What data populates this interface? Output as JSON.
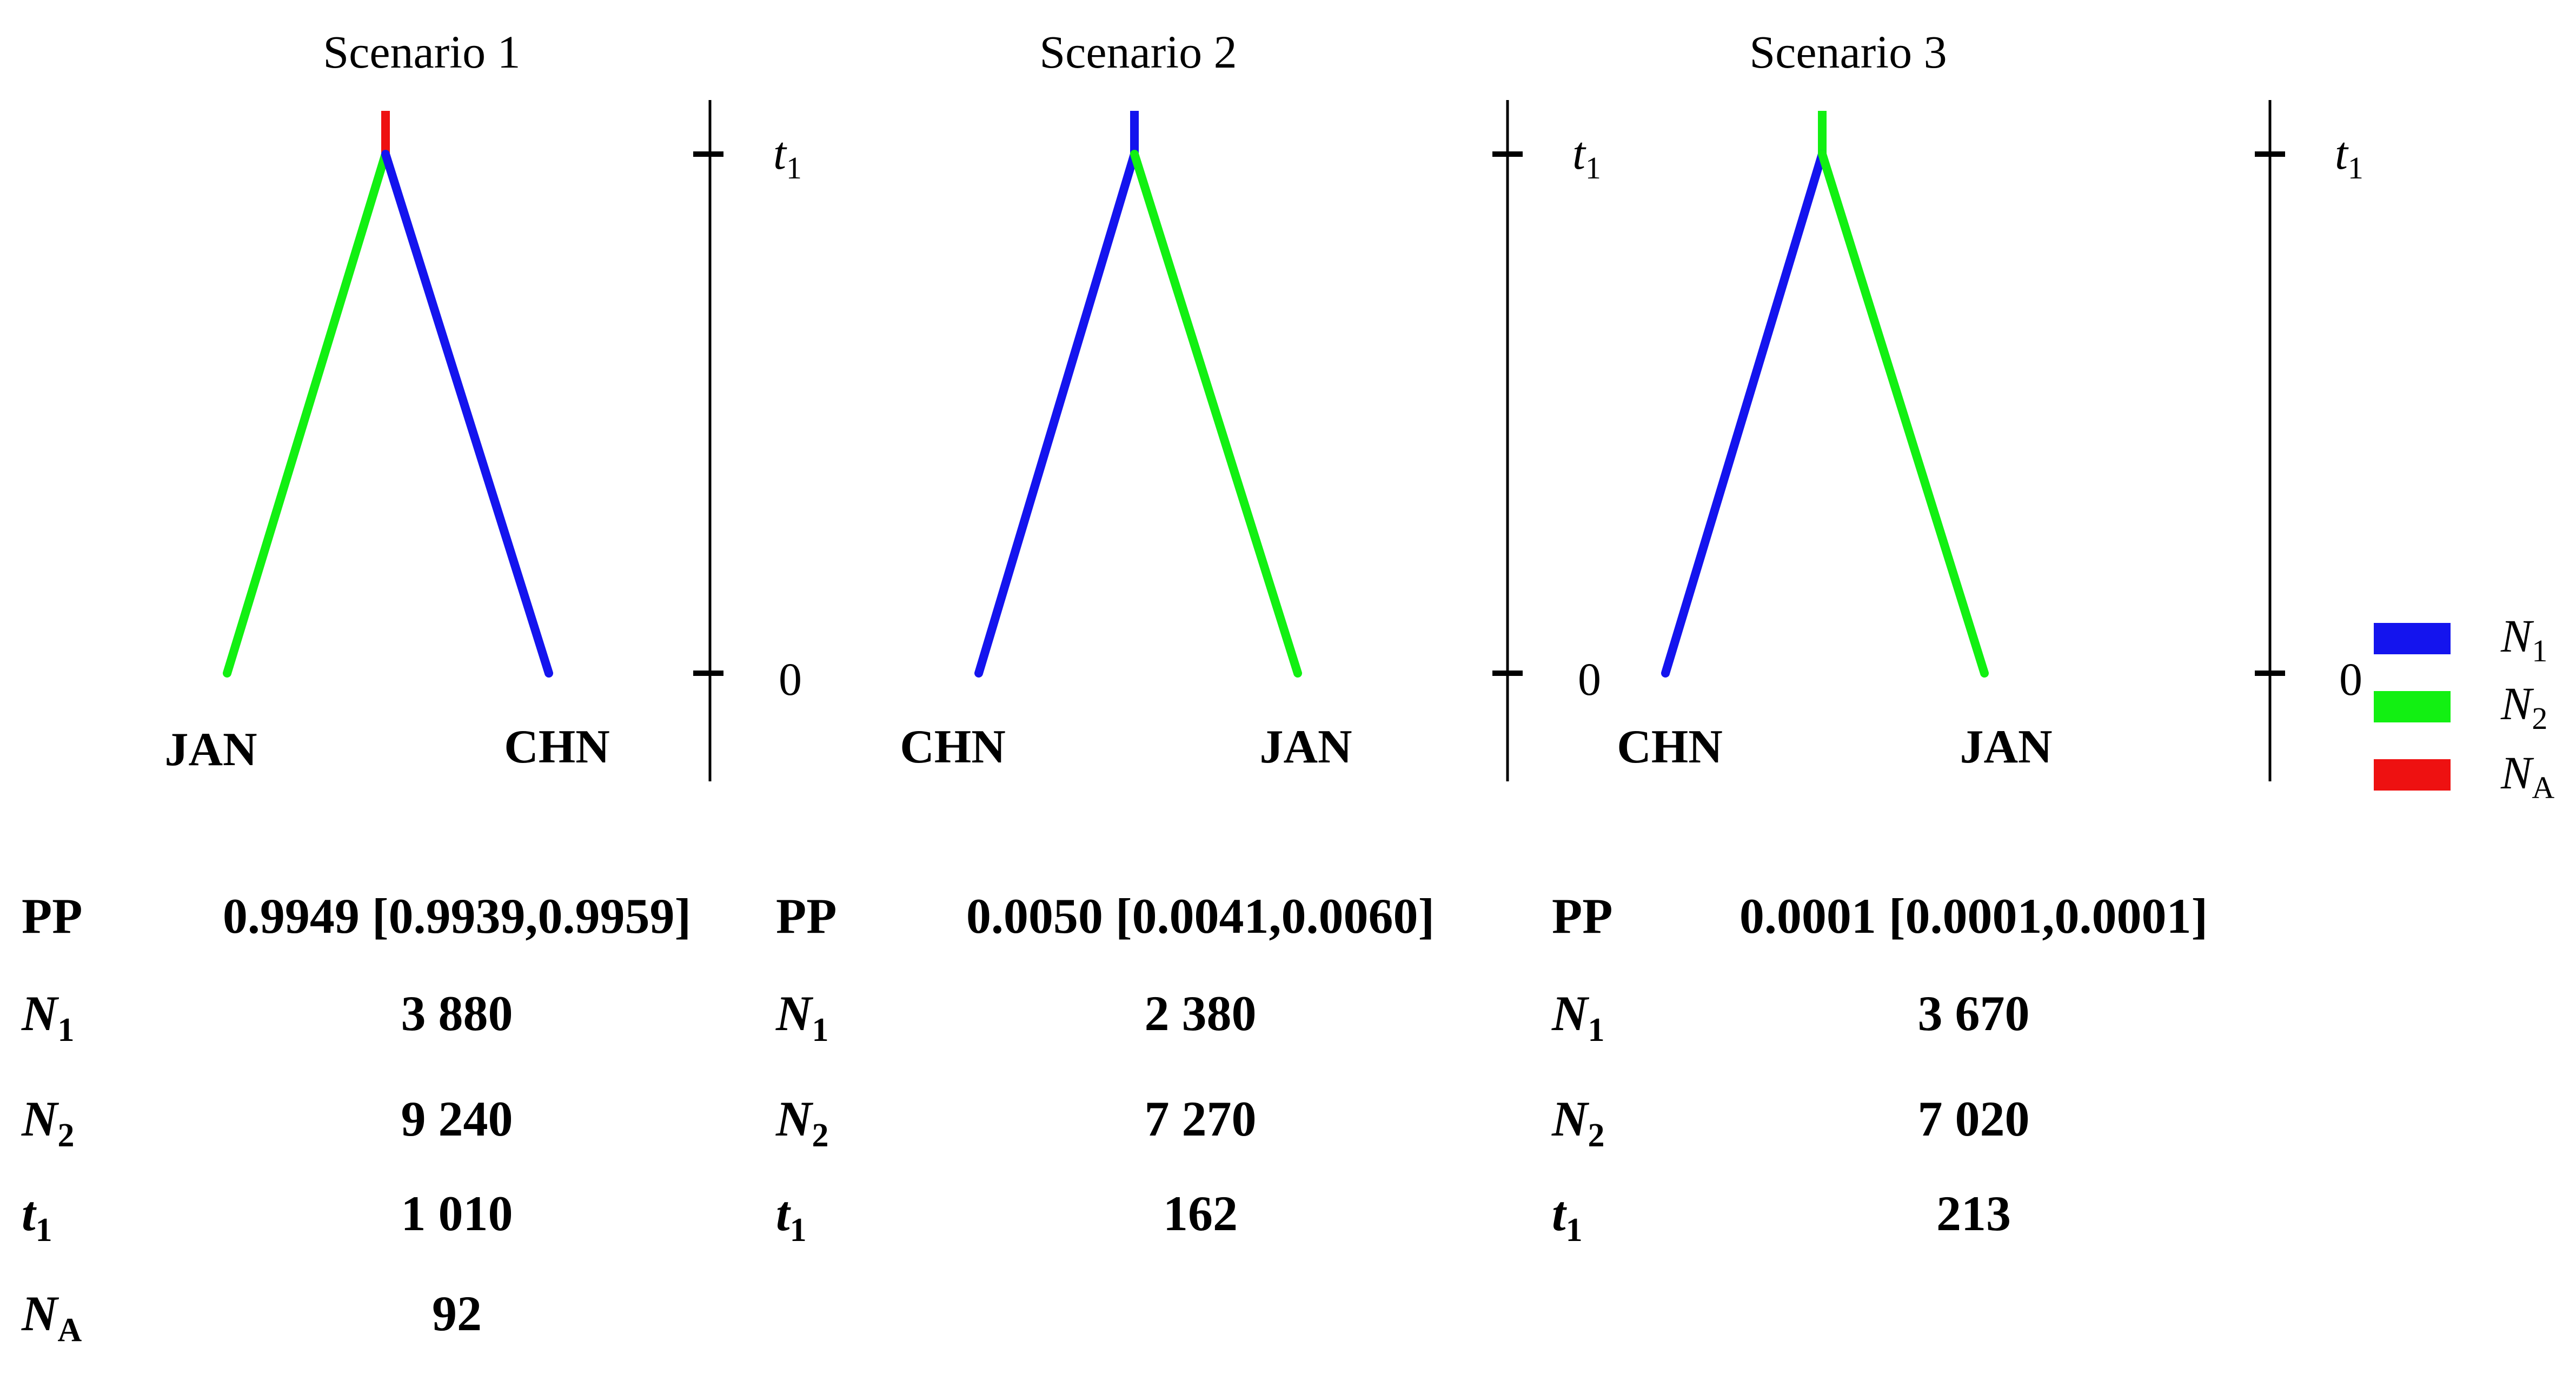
{
  "colors": {
    "N1": "#1414ee",
    "N2": "#12f012",
    "NA": "#ee1111"
  },
  "legend": [
    {
      "key": "N1",
      "label": "N",
      "sub": "1",
      "color": "#1414ee"
    },
    {
      "key": "N2",
      "label": "N",
      "sub": "2",
      "color": "#12f012"
    },
    {
      "key": "NA",
      "label": "N",
      "sub": "A",
      "color": "#ee1111"
    }
  ],
  "scenarios": [
    {
      "title": "Scenario 1",
      "left_pop": "JAN",
      "right_pop": "CHN",
      "left_color": "N2",
      "right_color": "N1",
      "stem_color": "NA",
      "axis": {
        "top_label": "t",
        "top_sub": "1",
        "bottom_label": "0"
      },
      "table": [
        {
          "label": "PP",
          "sub": "",
          "italic": false,
          "value": "0.9949 [0.9939,0.9959]"
        },
        {
          "label": "N",
          "sub": "1",
          "italic": true,
          "value": "3 880"
        },
        {
          "label": "N",
          "sub": "2",
          "italic": true,
          "value": "9 240"
        },
        {
          "label": "t",
          "sub": "1",
          "italic": true,
          "value": "1 010"
        },
        {
          "label": "N",
          "sub": "A",
          "italic": true,
          "value": "92"
        }
      ]
    },
    {
      "title": "Scenario 2",
      "left_pop": "CHN",
      "right_pop": "JAN",
      "left_color": "N1",
      "right_color": "N2",
      "stem_color": "N1",
      "axis": {
        "top_label": "t",
        "top_sub": "1",
        "bottom_label": "0"
      },
      "table": [
        {
          "label": "PP",
          "sub": "",
          "italic": false,
          "value": "0.0050 [0.0041,0.0060]"
        },
        {
          "label": "N",
          "sub": "1",
          "italic": true,
          "value": "2 380"
        },
        {
          "label": "N",
          "sub": "2",
          "italic": true,
          "value": "7 270"
        },
        {
          "label": "t",
          "sub": "1",
          "italic": true,
          "value": "162"
        }
      ]
    },
    {
      "title": "Scenario 3",
      "left_pop": "CHN",
      "right_pop": "JAN",
      "left_color": "N1",
      "right_color": "N2",
      "stem_color": "N2",
      "axis": {
        "top_label": "t",
        "top_sub": "1",
        "bottom_label": "0"
      },
      "table": [
        {
          "label": "PP",
          "sub": "",
          "italic": false,
          "value": "0.0001 [0.0001,0.0001]"
        },
        {
          "label": "N",
          "sub": "1",
          "italic": true,
          "value": "3 670"
        },
        {
          "label": "N",
          "sub": "2",
          "italic": true,
          "value": "7 020"
        },
        {
          "label": "t",
          "sub": "1",
          "italic": true,
          "value": "213"
        }
      ]
    }
  ]
}
